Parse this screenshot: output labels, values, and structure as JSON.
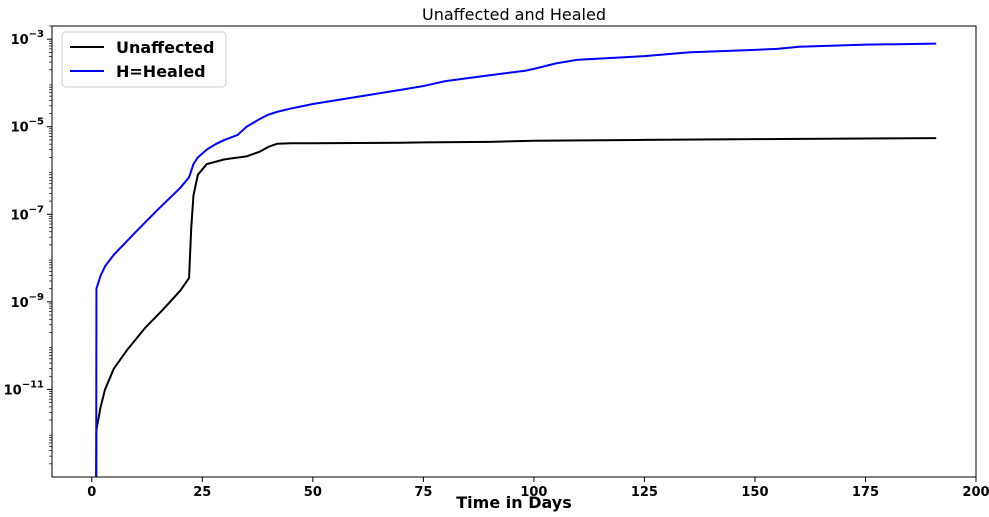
{
  "chart_data": {
    "type": "line",
    "title": "Unaffected and Healed",
    "xlabel": "Time in Days",
    "ylabel": "",
    "yscale": "log",
    "xlim": [
      -9,
      200
    ],
    "ylim": [
      1e-13,
      0.002
    ],
    "x_ticks": [
      0,
      25,
      50,
      75,
      100,
      125,
      150,
      175,
      200
    ],
    "x_tick_labels": [
      "0",
      "25",
      "50",
      "75",
      "100",
      "125",
      "150",
      "175",
      "200"
    ],
    "y_ticks": [
      1e-11,
      1e-09,
      1e-07,
      1e-05,
      0.001
    ],
    "y_tick_labels": [
      {
        "base": "10",
        "exp": "−11"
      },
      {
        "base": "10",
        "exp": "−9"
      },
      {
        "base": "10",
        "exp": "−7"
      },
      {
        "base": "10",
        "exp": "−5"
      },
      {
        "base": "10",
        "exp": "−3"
      }
    ],
    "grid": false,
    "legend_position": "top-left",
    "series": [
      {
        "name": "Unaffected",
        "color": "#000000",
        "x": [
          1,
          1.05,
          2,
          3,
          5,
          8,
          12,
          16,
          20,
          22,
          22.5,
          23,
          24,
          26,
          30,
          35,
          38,
          40,
          42,
          45,
          50,
          60,
          70,
          75,
          90,
          100,
          125,
          150,
          175,
          191
        ],
        "y": [
          1e-13,
          1.2e-12,
          4e-12,
          1e-11,
          3e-11,
          8e-11,
          2.5e-10,
          6.5e-10,
          1.8e-09,
          3.5e-09,
          5e-08,
          2.7e-07,
          8e-07,
          1.4e-06,
          1.8e-06,
          2.1e-06,
          2.7e-06,
          3.5e-06,
          4.1e-06,
          4.2e-06,
          4.2e-06,
          4.25e-06,
          4.3e-06,
          4.4e-06,
          4.5e-06,
          4.8e-06,
          5e-06,
          5.2e-06,
          5.4e-06,
          5.5e-06
        ]
      },
      {
        "name": "H=Healed",
        "color": "#0000ff",
        "x": [
          1,
          1.05,
          2,
          3,
          5,
          10,
          15,
          20,
          22,
          23,
          24,
          26,
          28,
          30,
          33,
          35,
          38,
          40,
          42,
          45,
          50,
          60,
          70,
          75,
          80,
          90,
          98,
          100,
          105,
          110,
          125,
          135,
          150,
          155,
          160,
          175,
          191
        ],
        "y": [
          1e-13,
          2e-09,
          4e-09,
          6.5e-09,
          1.2e-08,
          4e-08,
          1.3e-07,
          4e-07,
          7e-07,
          1.4e-06,
          2e-06,
          3e-06,
          4e-06,
          5e-06,
          6.5e-06,
          1e-05,
          1.5e-05,
          1.9e-05,
          2.2e-05,
          2.6e-05,
          3.3e-05,
          4.8e-05,
          7e-05,
          8.5e-05,
          0.00011,
          0.00015,
          0.00019,
          0.00021,
          0.00028,
          0.00034,
          0.00041,
          0.0005,
          0.00057,
          0.0006,
          0.00067,
          0.00075,
          0.00079
        ]
      }
    ]
  }
}
